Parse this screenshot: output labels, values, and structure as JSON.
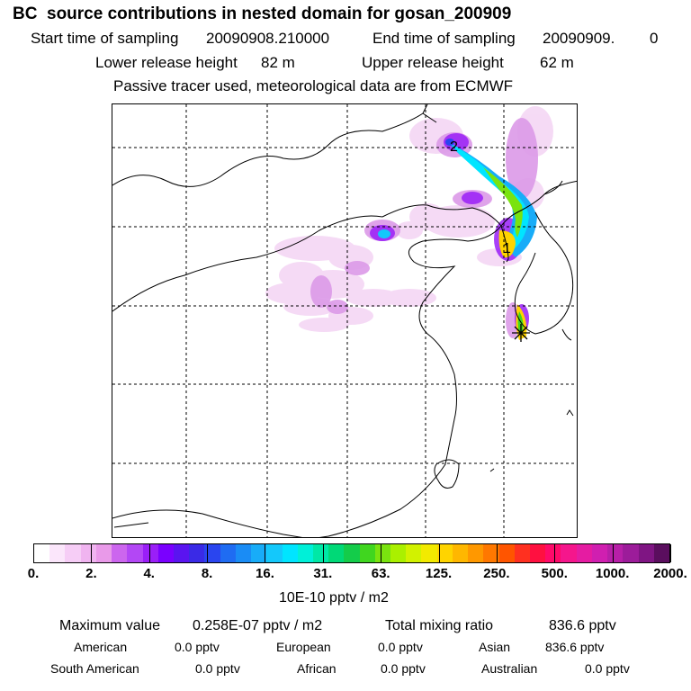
{
  "header": {
    "title": "BC  source contributions in nested domain for gosan_200909",
    "start_label": "Start time of sampling",
    "start_value": "20090908.210000",
    "end_label": "End time of sampling",
    "end_value": "20090909.",
    "end_value2": "0",
    "lower_label": "Lower release height",
    "lower_value": "82 m",
    "upper_label": "Upper release height",
    "upper_value": "62 m",
    "note": "Passive tracer used, meteorological data are from ECMWF"
  },
  "map": {
    "markers": [
      {
        "label": "2"
      },
      {
        "label": "1"
      }
    ],
    "receptor": "gosan-receptor"
  },
  "colorbar": {
    "unit": "10E-10 pptv / m2",
    "labels": [
      "0.",
      "2.",
      "4.",
      "8.",
      "16.",
      "31.",
      "63.",
      "125.",
      "250.",
      "500.",
      "1000.",
      "2000."
    ],
    "colors": [
      "#ffffff",
      "#fbe6fb",
      "#f6cdf6",
      "#f0b4f0",
      "#e99ae9",
      "#cc66ee",
      "#b347f5",
      "#9a1ff7",
      "#7a00ff",
      "#5a14f0",
      "#3a2ae6",
      "#2a45ef",
      "#1f6cf2",
      "#1a8cf5",
      "#18acf8",
      "#14c8fb",
      "#00e5ff",
      "#00f0d8",
      "#00e8a6",
      "#00d977",
      "#14cc4a",
      "#40d61f",
      "#7ae30f",
      "#aaf000",
      "#d2f200",
      "#f2ea00",
      "#ffd400",
      "#ffb700",
      "#ff9800",
      "#ff7800",
      "#ff5500",
      "#ff3020",
      "#ff1040",
      "#ff0a6a",
      "#f5168c",
      "#e51ca2",
      "#d01fb0",
      "#b71fa8",
      "#9c1c9a",
      "#7f1583",
      "#5a0e5e"
    ]
  },
  "stats": {
    "max_label": "Maximum value",
    "max_value": "0.258E-07 pptv / m2",
    "total_label": "Total mixing ratio",
    "total_value": "836.6 pptv",
    "regions": [
      {
        "name": "American",
        "value": "0.0 pptv"
      },
      {
        "name": "European",
        "value": "0.0 pptv"
      },
      {
        "name": "Asian",
        "value": "836.6 pptv"
      },
      {
        "name": "South American",
        "value": "0.0 pptv"
      },
      {
        "name": "African",
        "value": "0.0 pptv"
      },
      {
        "name": "Australian",
        "value": "0.0 pptv"
      }
    ]
  }
}
